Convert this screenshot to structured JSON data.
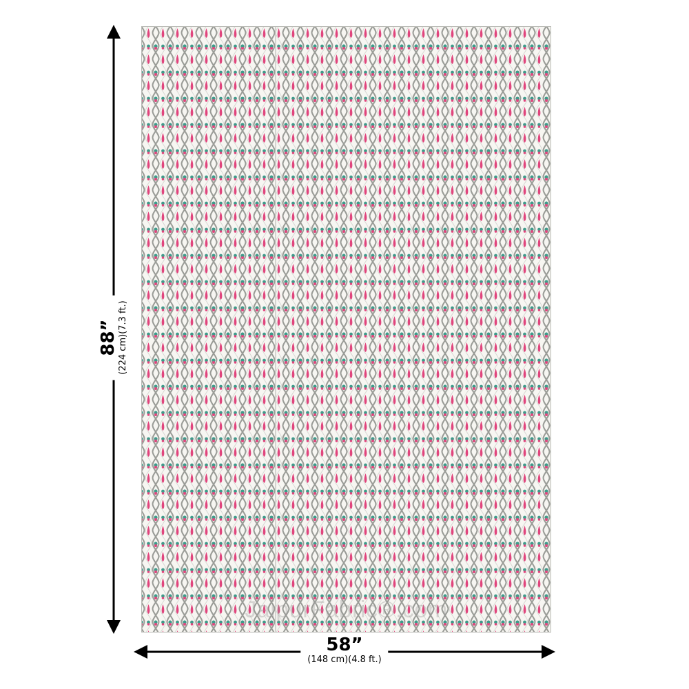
{
  "product": {
    "height": {
      "value": "88”",
      "sub": "(224 cm)(7.3 ft.)"
    },
    "width": {
      "value": "58”",
      "sub": "(148 cm)(4.8 ft.)"
    },
    "watermark": "JaipurFabric®.com"
  },
  "colors": {
    "pink": "#e0457d",
    "gray": "#8f928c",
    "teal": "#3f9a8a",
    "background": "#f7f6f2"
  }
}
